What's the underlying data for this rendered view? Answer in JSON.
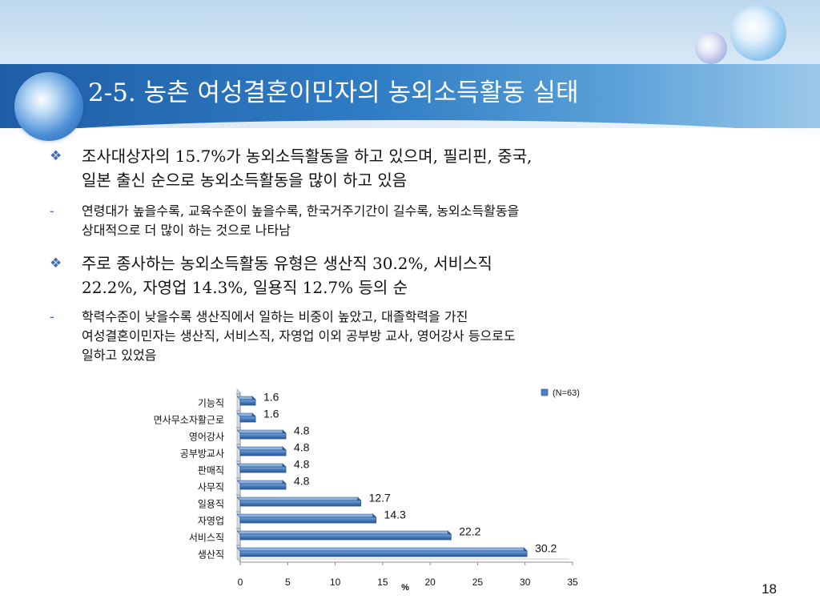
{
  "slide": {
    "title": "2-5. 농촌 여성결혼이민자의 농외소득활동 실태",
    "page_number": "18"
  },
  "bullets": [
    {
      "marker": "❖",
      "text_line1": "조사대상자의 15.7%가 농외소득활동을 하고 있으며, 필리핀, 중국,",
      "text_line2": "일본 출신 순으로 농외소득활동을 많이 하고 있음"
    },
    {
      "marker": "-",
      "text_line1": "연령대가 높을수록, 교육수준이 높을수록, 한국거주기간이 길수록, 농외소득활동을",
      "text_line2": "상대적으로 더 많이 하는 것으로 나타남"
    },
    {
      "marker": "❖",
      "text_line1": "주로 종사하는 농외소득활동 유형은 생산직 30.2%, 서비스직",
      "text_line2": "22.2%, 자영업 14.3%, 일용직 12.7% 등의 순"
    },
    {
      "marker": "-",
      "text_line1": "학력수준이 낮을수록 생산직에서 일하는 비중이 높았고, 대졸학력을 가진",
      "text_line2": "여성결혼이민자는 생산직, 서비스직, 자영업 이외 공부방 교사, 영어강사 등으로도",
      "text_line3": "일하고 있었음"
    }
  ],
  "chart_data": {
    "type": "bar",
    "orientation": "horizontal",
    "categories": [
      "기능직",
      "면사무소자활근로",
      "영어강사",
      "공부방교사",
      "판매직",
      "사무직",
      "일용직",
      "자영업",
      "서비스직",
      "생산직"
    ],
    "series": [
      {
        "name": "(N=63)",
        "values": [
          1.6,
          1.6,
          4.8,
          4.8,
          4.8,
          4.8,
          12.7,
          14.3,
          22.2,
          30.2
        ]
      }
    ],
    "data_labels": [
      "1.6",
      "1.6",
      "4.8",
      "4.8",
      "4.8",
      "4.8",
      "12.7",
      "14.3",
      "22.2",
      "30.2"
    ],
    "x_ticks": [
      "0",
      "5",
      "10",
      "15",
      "20",
      "25",
      "30",
      "35"
    ],
    "xlim": [
      0,
      35
    ],
    "xlabel": "%",
    "legend": "top-right",
    "bar_color": "#4a7fc1",
    "bar_color_dark": "#2a558f",
    "grid": false
  }
}
